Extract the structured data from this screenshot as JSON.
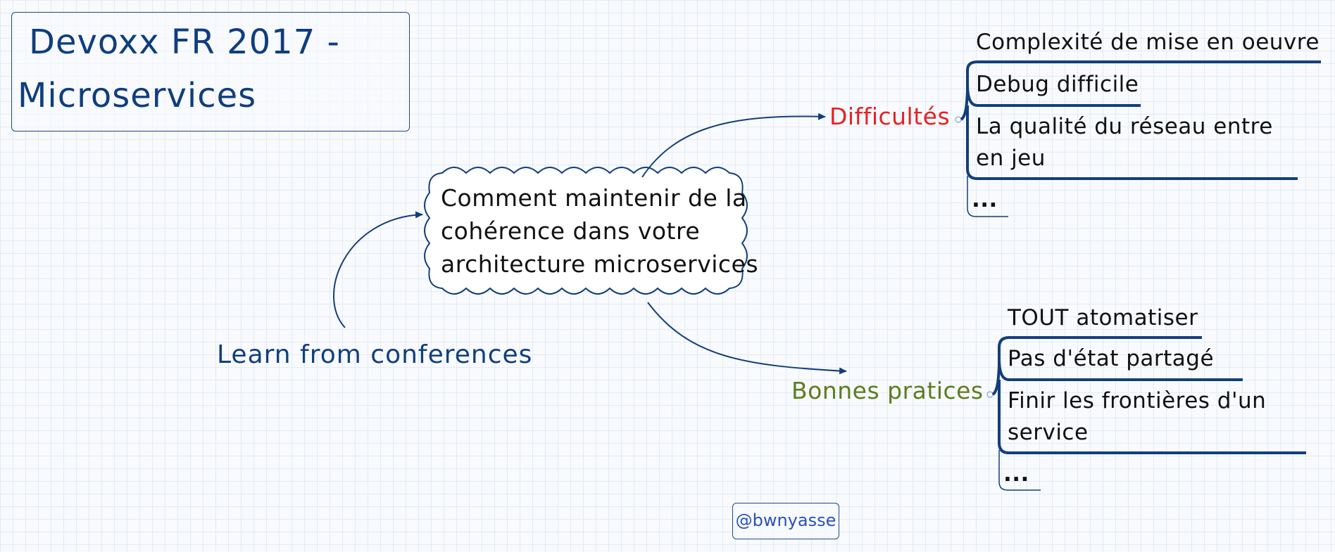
{
  "title": {
    "line1": "Devoxx FR 2017 -",
    "line2": "Microservices"
  },
  "center": {
    "lines": [
      "Comment maintenir de la",
      "cohérence dans votre",
      "architecture microservices"
    ]
  },
  "learn_label": "Learn from conferences",
  "branches": {
    "difficultes": {
      "label": "Difficultés",
      "color": "#e62222",
      "items": [
        {
          "lines": [
            "Complexité de mise en oeuvre"
          ]
        },
        {
          "lines": [
            "Debug difficile"
          ]
        },
        {
          "lines": [
            "La qualité du réseau entre",
            "en jeu"
          ]
        },
        {
          "lines": [
            "..."
          ]
        }
      ]
    },
    "bonnes": {
      "label": "Bonnes pratices",
      "color": "#5b7d1f",
      "items": [
        {
          "lines": [
            "TOUT atomatiser"
          ]
        },
        {
          "lines": [
            "Pas d'état partagé"
          ]
        },
        {
          "lines": [
            "Finir les frontières d'un",
            "service"
          ]
        },
        {
          "lines": [
            "..."
          ]
        }
      ]
    }
  },
  "handle": "@bwnyasse",
  "colors": {
    "primary": "#0f3e7e",
    "line": "#123f7a"
  }
}
